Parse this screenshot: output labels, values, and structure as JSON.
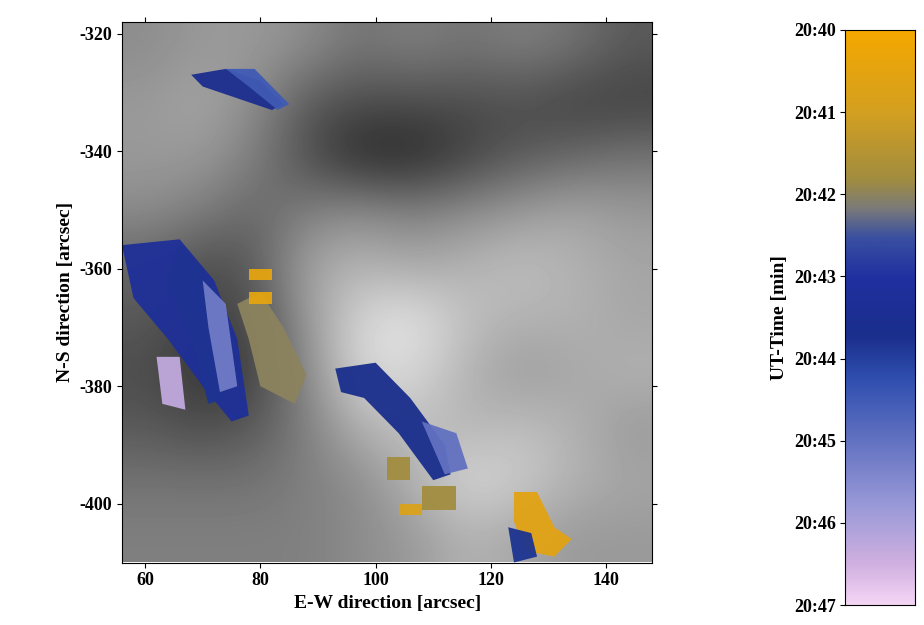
{
  "chart_data": {
    "type": "image_overlay",
    "x_label": "E-W direction [arcsec]",
    "y_label": "N-S direction [arcsec]",
    "xlim": [
      56,
      148
    ],
    "ylim": [
      -410,
      -318
    ],
    "xticks": [
      60,
      80,
      100,
      120,
      140
    ],
    "yticks": [
      -320,
      -340,
      -360,
      -380,
      -400
    ],
    "background": [
      [
        0.55,
        0.6,
        0.6,
        0.55,
        0.45,
        0.5,
        0.45,
        0.5,
        0.45,
        0.35
      ],
      [
        0.6,
        0.65,
        0.55,
        0.35,
        0.3,
        0.3,
        0.3,
        0.3,
        0.25,
        0.25
      ],
      [
        0.6,
        0.6,
        0.5,
        0.3,
        0.15,
        0.15,
        0.25,
        0.35,
        0.4,
        0.45
      ],
      [
        0.55,
        0.5,
        0.4,
        0.5,
        0.55,
        0.5,
        0.55,
        0.6,
        0.65,
        0.6
      ],
      [
        0.4,
        0.3,
        0.35,
        0.65,
        0.7,
        0.65,
        0.7,
        0.75,
        0.7,
        0.65
      ],
      [
        0.35,
        0.25,
        0.3,
        0.6,
        0.85,
        0.9,
        0.75,
        0.7,
        0.7,
        0.65
      ],
      [
        0.3,
        0.2,
        0.25,
        0.55,
        0.85,
        0.85,
        0.7,
        0.6,
        0.65,
        0.7
      ],
      [
        0.35,
        0.3,
        0.35,
        0.5,
        0.7,
        0.75,
        0.7,
        0.75,
        0.7,
        0.6
      ],
      [
        0.45,
        0.45,
        0.45,
        0.5,
        0.55,
        0.7,
        0.85,
        0.8,
        0.7,
        0.65
      ],
      [
        0.5,
        0.5,
        0.5,
        0.5,
        0.55,
        0.6,
        0.7,
        0.65,
        0.6,
        0.6
      ]
    ],
    "regions": [
      {
        "time": 43.6,
        "points": [
          [
            68,
            -327
          ],
          [
            74,
            -326
          ],
          [
            80,
            -328
          ],
          [
            84,
            -332
          ],
          [
            82,
            -333
          ],
          [
            76,
            -331
          ],
          [
            70,
            -329
          ]
        ]
      },
      {
        "time": 44.5,
        "points": [
          [
            74,
            -326
          ],
          [
            79,
            -326
          ],
          [
            85,
            -332
          ],
          [
            83,
            -333
          ],
          [
            78,
            -329
          ]
        ]
      },
      {
        "time": 43.3,
        "points": [
          [
            56,
            -356
          ],
          [
            66,
            -355
          ],
          [
            72,
            -362
          ],
          [
            76,
            -372
          ],
          [
            78,
            -385
          ],
          [
            75,
            -386
          ],
          [
            70,
            -380
          ],
          [
            64,
            -372
          ],
          [
            58,
            -365
          ]
        ]
      },
      {
        "time": 43.8,
        "points": [
          [
            66,
            -356
          ],
          [
            70,
            -360
          ],
          [
            72,
            -370
          ],
          [
            74,
            -382
          ],
          [
            71,
            -383
          ],
          [
            68,
            -372
          ],
          [
            64,
            -362
          ]
        ]
      },
      {
        "time": 45.2,
        "points": [
          [
            70,
            -362
          ],
          [
            74,
            -366
          ],
          [
            76,
            -380
          ],
          [
            73,
            -381
          ],
          [
            71,
            -370
          ]
        ]
      },
      {
        "time": 46.3,
        "points": [
          [
            62,
            -375
          ],
          [
            66,
            -375
          ],
          [
            67,
            -384
          ],
          [
            63,
            -383
          ]
        ]
      },
      {
        "time": 42.0,
        "points": [
          [
            76,
            -366
          ],
          [
            80,
            -364
          ],
          [
            84,
            -370
          ],
          [
            88,
            -378
          ],
          [
            86,
            -383
          ],
          [
            80,
            -380
          ],
          [
            78,
            -372
          ]
        ]
      },
      {
        "time": 40.5,
        "points": [
          [
            78,
            -360
          ],
          [
            82,
            -360
          ],
          [
            82,
            -362
          ],
          [
            78,
            -362
          ]
        ]
      },
      {
        "time": 40.5,
        "points": [
          [
            78,
            -364
          ],
          [
            82,
            -364
          ],
          [
            82,
            -366
          ],
          [
            78,
            -366
          ]
        ]
      },
      {
        "time": 43.7,
        "points": [
          [
            93,
            -377
          ],
          [
            100,
            -376
          ],
          [
            106,
            -382
          ],
          [
            112,
            -390
          ],
          [
            113,
            -395
          ],
          [
            110,
            -396
          ],
          [
            104,
            -388
          ],
          [
            98,
            -382
          ],
          [
            94,
            -381
          ]
        ]
      },
      {
        "time": 45.0,
        "points": [
          [
            108,
            -386
          ],
          [
            114,
            -388
          ],
          [
            116,
            -394
          ],
          [
            112,
            -395
          ]
        ]
      },
      {
        "time": 41.8,
        "points": [
          [
            102,
            -392
          ],
          [
            106,
            -392
          ],
          [
            106,
            -396
          ],
          [
            102,
            -396
          ]
        ]
      },
      {
        "time": 41.8,
        "points": [
          [
            108,
            -397
          ],
          [
            114,
            -397
          ],
          [
            114,
            -401
          ],
          [
            108,
            -401
          ]
        ]
      },
      {
        "time": 40.8,
        "points": [
          [
            104,
            -400
          ],
          [
            108,
            -400
          ],
          [
            108,
            -402
          ],
          [
            104,
            -402
          ]
        ]
      },
      {
        "time": 40.6,
        "points": [
          [
            124,
            -398
          ],
          [
            128,
            -398
          ],
          [
            131,
            -404
          ],
          [
            134,
            -406
          ],
          [
            131,
            -409
          ],
          [
            126,
            -408
          ],
          [
            124,
            -403
          ]
        ]
      },
      {
        "time": 43.8,
        "points": [
          [
            123,
            -404
          ],
          [
            127,
            -405
          ],
          [
            128,
            -409
          ],
          [
            124,
            -410
          ]
        ]
      }
    ],
    "colorbar": {
      "label": "UT-Time [min]",
      "range": [
        47,
        40
      ],
      "ticks": [
        {
          "value": 40,
          "label": "20:40"
        },
        {
          "value": 41,
          "label": "20:41"
        },
        {
          "value": 42,
          "label": "20:42"
        },
        {
          "value": 43,
          "label": "20:43"
        },
        {
          "value": 44,
          "label": "20:44"
        },
        {
          "value": 45,
          "label": "20:45"
        },
        {
          "value": 46,
          "label": "20:46"
        },
        {
          "value": 47,
          "label": "20:47"
        }
      ]
    }
  }
}
